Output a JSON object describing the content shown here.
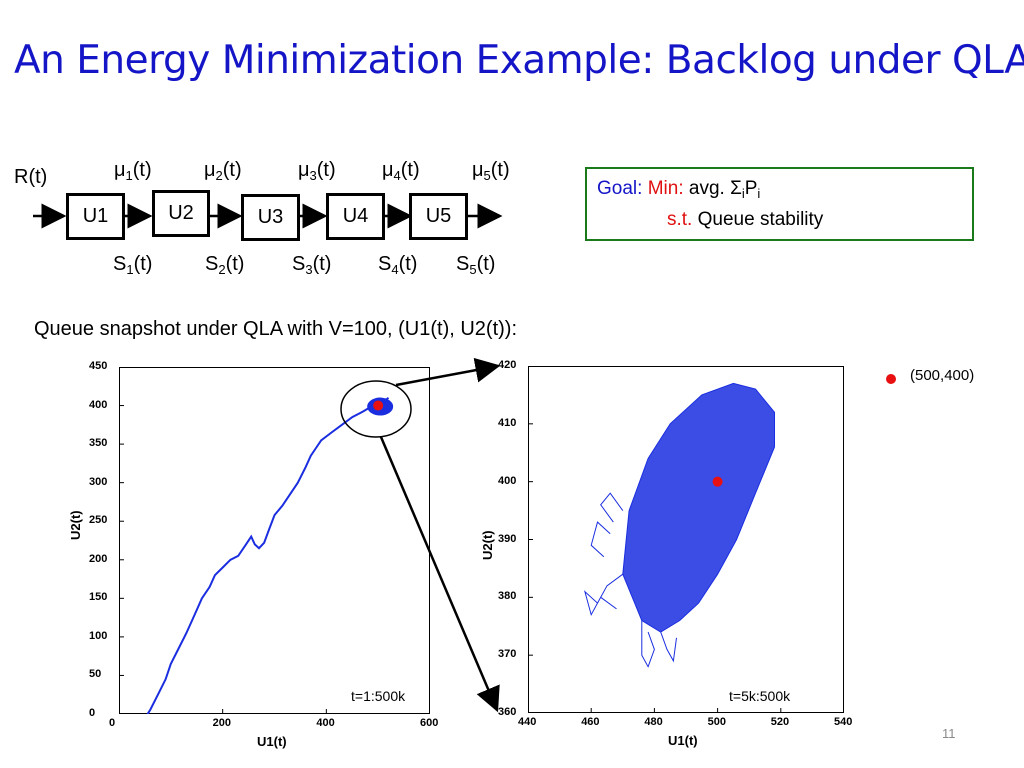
{
  "title": "An Energy Minimization Example: Backlog under QLA",
  "diagram": {
    "input_label": "R(t)",
    "units": [
      "U1",
      "U2",
      "U3",
      "U4",
      "U5"
    ],
    "mu_labels": [
      {
        "base": "μ",
        "sub": "1",
        "suffix": "(t)"
      },
      {
        "base": "μ",
        "sub": "2",
        "suffix": "(t)"
      },
      {
        "base": "μ",
        "sub": "3",
        "suffix": "(t)"
      },
      {
        "base": "μ",
        "sub": "4",
        "suffix": "(t)"
      },
      {
        "base": "μ",
        "sub": "5",
        "suffix": "(t)"
      }
    ],
    "s_labels": [
      {
        "base": "S",
        "sub": "1",
        "suffix": "(t)"
      },
      {
        "base": "S",
        "sub": "2",
        "suffix": "(t)"
      },
      {
        "base": "S",
        "sub": "3",
        "suffix": "(t)"
      },
      {
        "base": "S",
        "sub": "4",
        "suffix": "(t)"
      },
      {
        "base": "S",
        "sub": "5",
        "suffix": "(t)"
      }
    ]
  },
  "goal": {
    "goal_label": "Goal:",
    "min_label": "Min:",
    "objective_prefix": "avg. Σ",
    "objective_sub1": "i",
    "objective_mid": "P",
    "objective_sub2": "i",
    "st_label": "s.t.",
    "constraint": "Queue stability",
    "colors": {
      "goal": "#1515c8",
      "min": "#e01010",
      "st": "#e01010",
      "border": "#1a7a1a"
    }
  },
  "snapshot_caption": "Queue snapshot under QLA with V=100, (U1(t), U2(t)):",
  "legend": {
    "marker_color": "#e81010",
    "text": "(500,400)"
  },
  "chart_data": [
    {
      "type": "line",
      "xlabel": "U1(t)",
      "ylabel": "U2(t)",
      "xlim": [
        0,
        600
      ],
      "ylim": [
        0,
        450
      ],
      "xticks": [
        0,
        200,
        400,
        600
      ],
      "yticks": [
        0,
        50,
        100,
        150,
        200,
        250,
        300,
        350,
        400,
        450
      ],
      "annotation": "t=1:500k",
      "series_color": "#1a2ee0",
      "path": [
        [
          55,
          0
        ],
        [
          60,
          5
        ],
        [
          75,
          25
        ],
        [
          90,
          45
        ],
        [
          100,
          65
        ],
        [
          115,
          85
        ],
        [
          130,
          105
        ],
        [
          140,
          120
        ],
        [
          150,
          135
        ],
        [
          160,
          150
        ],
        [
          175,
          165
        ],
        [
          185,
          180
        ],
        [
          200,
          190
        ],
        [
          215,
          200
        ],
        [
          230,
          205
        ],
        [
          245,
          220
        ],
        [
          255,
          230
        ],
        [
          262,
          220
        ],
        [
          270,
          215
        ],
        [
          280,
          222
        ],
        [
          290,
          240
        ],
        [
          300,
          258
        ],
        [
          315,
          270
        ],
        [
          330,
          285
        ],
        [
          345,
          300
        ],
        [
          360,
          320
        ],
        [
          370,
          335
        ],
        [
          380,
          345
        ],
        [
          390,
          355
        ],
        [
          410,
          365
        ],
        [
          430,
          375
        ],
        [
          450,
          385
        ],
        [
          470,
          392
        ],
        [
          485,
          398
        ],
        [
          500,
          400
        ],
        [
          510,
          405
        ],
        [
          520,
          410
        ]
      ],
      "highlight_point": [
        500,
        400
      ],
      "highlight_color": "#e81010"
    },
    {
      "type": "line",
      "xlabel": "U1(t)",
      "ylabel": "U2(t)",
      "xlim": [
        440,
        540
      ],
      "ylim": [
        360,
        420
      ],
      "xticks": [
        440,
        460,
        480,
        500,
        520,
        540
      ],
      "yticks": [
        360,
        370,
        380,
        390,
        400,
        410,
        420
      ],
      "annotation": "t=5k:500k",
      "series_color": "#1a2ee0",
      "cluster_outline": [
        [
          470,
          384
        ],
        [
          472,
          395
        ],
        [
          478,
          404
        ],
        [
          485,
          410
        ],
        [
          495,
          415
        ],
        [
          505,
          417
        ],
        [
          512,
          416
        ],
        [
          518,
          412
        ],
        [
          518,
          406
        ],
        [
          512,
          398
        ],
        [
          506,
          390
        ],
        [
          500,
          384
        ],
        [
          494,
          379
        ],
        [
          488,
          376
        ],
        [
          482,
          374
        ],
        [
          476,
          376
        ]
      ],
      "highlight_point": [
        500,
        400
      ],
      "highlight_color": "#e81010"
    }
  ],
  "slide_number": "11"
}
